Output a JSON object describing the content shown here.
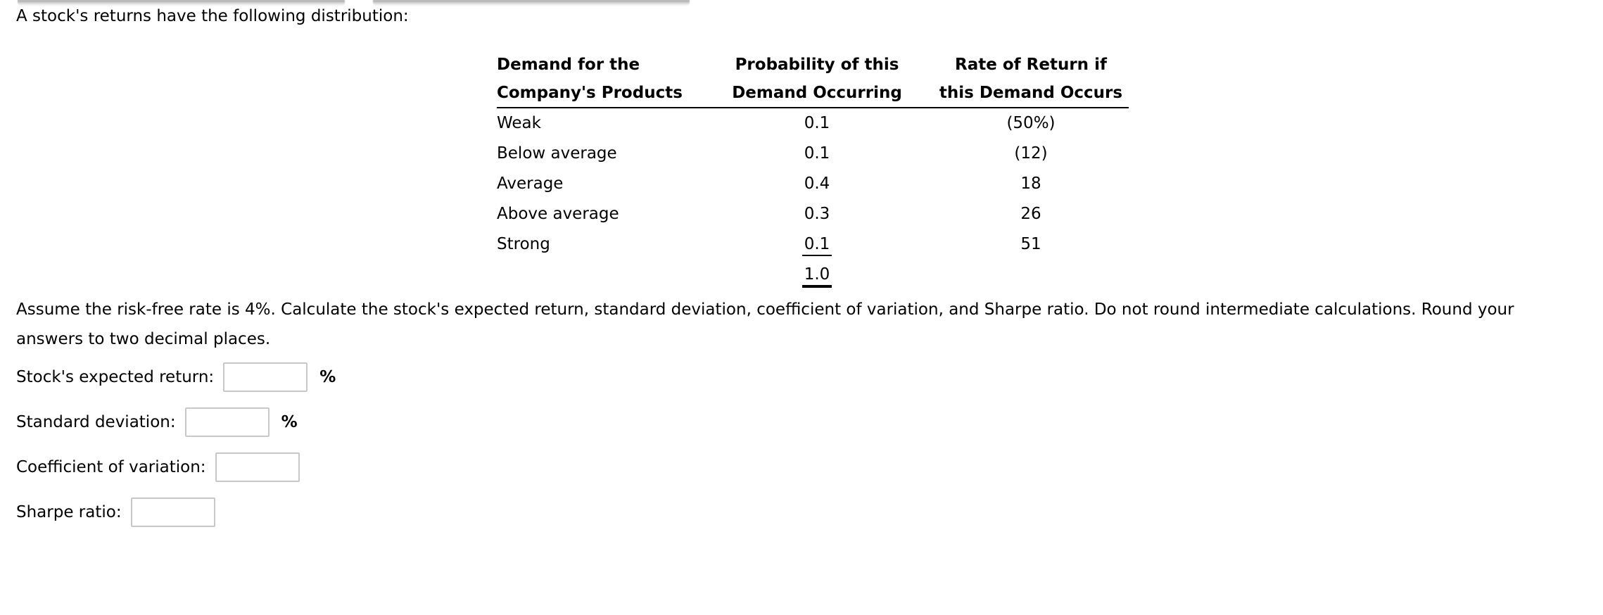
{
  "page": {
    "intro": "A stock's returns have the following distribution:",
    "instructions_line1": "Assume the risk-free rate is 4%. Calculate the stock's expected return, standard deviation, coefficient of variation, and Sharpe ratio. Do not round intermediate calculations. Round your",
    "instructions_line2": "answers to two decimal places."
  },
  "distribution_table": {
    "headers": [
      {
        "line1": "Demand for the",
        "line2": "Company's Products"
      },
      {
        "line1": "Probability of this",
        "line2": "Demand Occurring"
      },
      {
        "line1": "Rate of Return if",
        "line2": "this Demand Occurs"
      }
    ],
    "rows": [
      {
        "demand": "Weak",
        "probability": "0.1",
        "rate": "(50%)"
      },
      {
        "demand": "Below average",
        "probability": "0.1",
        "rate": "(12)"
      },
      {
        "demand": "Average",
        "probability": "0.4",
        "rate": "18"
      },
      {
        "demand": "Above average",
        "probability": "0.3",
        "rate": "26"
      },
      {
        "demand": "Strong",
        "probability": "0.1",
        "rate": "51"
      }
    ],
    "total_probability": "1.0"
  },
  "answers": [
    {
      "label": "Stock's expected return:",
      "value": "",
      "suffix": "%"
    },
    {
      "label": "Standard deviation:",
      "value": "",
      "suffix": "%"
    },
    {
      "label": "Coefficient of variation:",
      "value": "",
      "suffix": ""
    },
    {
      "label": "Sharpe ratio:",
      "value": "",
      "suffix": ""
    }
  ],
  "colors": {
    "text": "#000000",
    "input_border": "#c8c8c8",
    "table_rule": "#000000",
    "top_bar_shadow": "#8a8a8a"
  }
}
